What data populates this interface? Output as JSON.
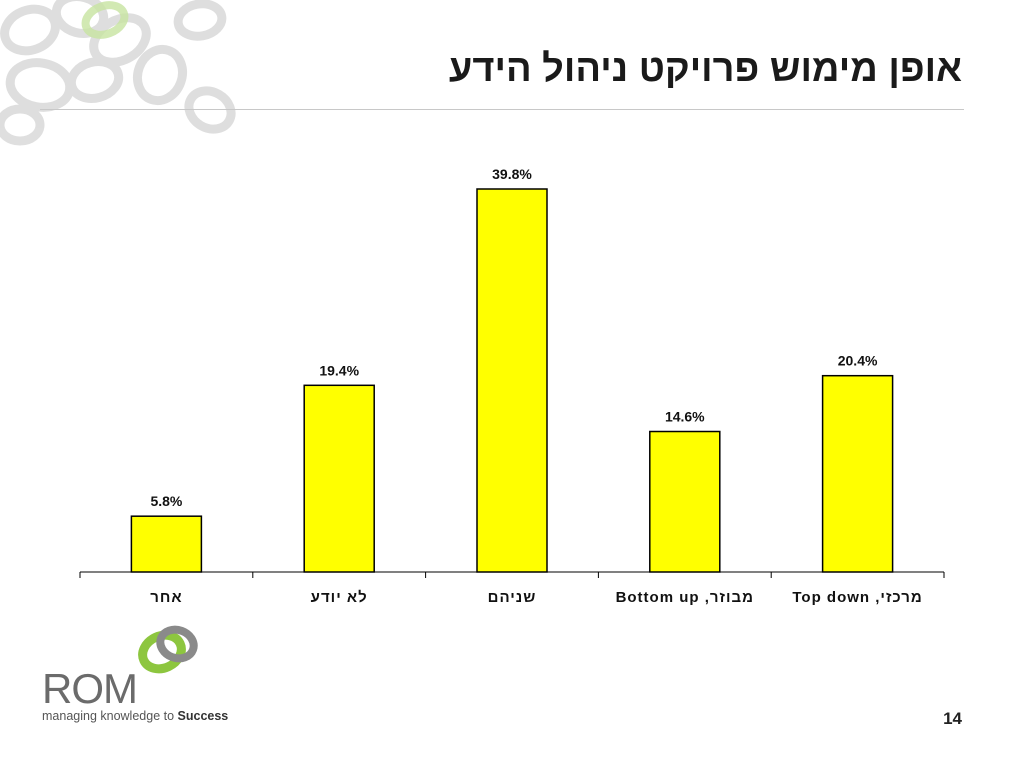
{
  "slide": {
    "title": "אופן מימוש פרויקט ניהול הידע",
    "page_number": "14"
  },
  "logo": {
    "name": "ROM",
    "tagline_prefix": "managing knowledge to ",
    "tagline_emphasis": "Success",
    "colors": {
      "green": "#8dc63f",
      "gray": "#8a8a8a"
    }
  },
  "chart_data": {
    "type": "bar",
    "categories": [
      "אחר",
      "לא יודע",
      "שניהם",
      "מבוזר, Bottom up",
      "מרכזי, Top down"
    ],
    "values": [
      5.8,
      19.4,
      39.8,
      14.6,
      20.4
    ],
    "value_labels": [
      "5.8%",
      "19.4%",
      "39.8%",
      "14.6%",
      "20.4%"
    ],
    "title": "",
    "xlabel": "",
    "ylabel": "",
    "ylim": [
      0,
      40
    ],
    "grid": false,
    "bar_color": "#ffff00",
    "bar_outline": "#000000"
  }
}
